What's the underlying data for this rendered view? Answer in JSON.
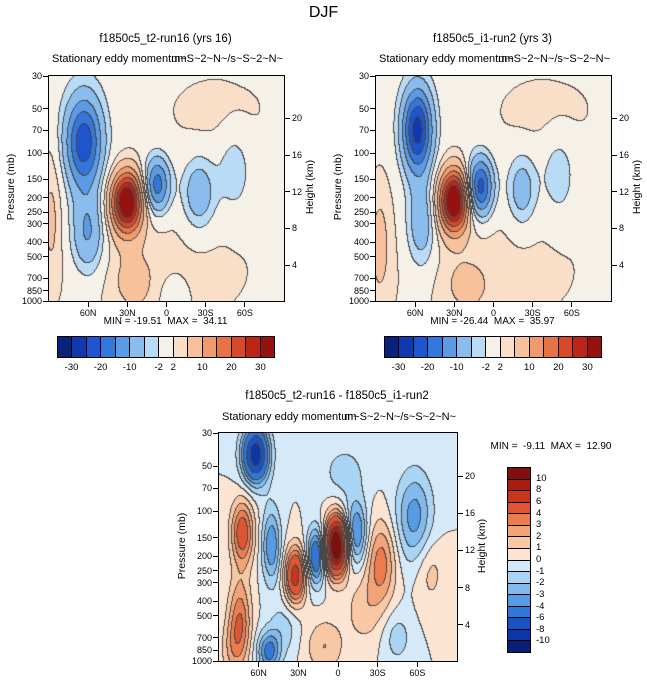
{
  "page_title": "DJF",
  "chart_data": {
    "type": "heatmap",
    "season": "DJF",
    "field": "Stationary eddy momentum",
    "units_markup": "m~S~2~N~/s~S~2~N~",
    "x_axis": {
      "range_lat": [
        90,
        -90
      ],
      "ticks": [
        {
          "lat": 60,
          "label": "60N"
        },
        {
          "lat": 30,
          "label": "30N"
        },
        {
          "lat": 0,
          "label": "0"
        },
        {
          "lat": -30,
          "label": "30S"
        },
        {
          "lat": -60,
          "label": "60S"
        }
      ]
    },
    "y_axis": {
      "label": "Pressure (mb)",
      "scale": "log",
      "ticks": [
        30,
        50,
        70,
        100,
        150,
        200,
        250,
        300,
        400,
        500,
        700,
        850,
        1000
      ]
    },
    "y2_axis": {
      "label": "Height (km)",
      "ticks": [
        20,
        16,
        12,
        8,
        4
      ]
    },
    "levels": [
      -30,
      -25,
      -20,
      -15,
      -10,
      -5,
      -2,
      2,
      5,
      10,
      15,
      20,
      25,
      30
    ],
    "level_label_values": [
      "-30",
      "-20",
      "-10",
      "-2",
      "2",
      "10",
      "20",
      "30"
    ],
    "level_label_indices": [
      0,
      2,
      4,
      6,
      7,
      9,
      11,
      13
    ],
    "palette": [
      "#08237e",
      "#1039b0",
      "#1c55cf",
      "#3377dd",
      "#5b9be6",
      "#8abced",
      "#badbf5",
      "#f5f0e8",
      "#fadfc8",
      "#f7c19b",
      "#f19b6c",
      "#e77244",
      "#d8492a",
      "#bd2617",
      "#951210"
    ],
    "diff_levels": [
      -10,
      -8,
      -6,
      -4,
      -3,
      -2,
      -1,
      0,
      1,
      2,
      3,
      4,
      6,
      8,
      10
    ],
    "diff_labels": [
      "10",
      "8",
      "6",
      "4",
      "3",
      "2",
      "1",
      "0",
      "-1",
      "-2",
      "-3",
      "-4",
      "-6",
      "-8",
      "-10"
    ],
    "diff_palette": [
      "#071f75",
      "#0d35a5",
      "#1a53c6",
      "#2f77d9",
      "#559ce5",
      "#81bbee",
      "#aad4f4",
      "#d5e9f9",
      "#fce4d2",
      "#f9c7a4",
      "#f4a377",
      "#ec7c4e",
      "#df5531",
      "#c9351f",
      "#a81c12",
      "#7f100d"
    ],
    "panels": [
      {
        "title": "f1850c5_t2-run16 (yrs 16)",
        "subtitle": "Stationary eddy momentum",
        "units": "m~S~2~N~/s~S~2~N~",
        "stats": "MIN = -19.51  MAX =  34.11",
        "min": -19.51,
        "max": 34.11,
        "features": [
          [
            3,
            0,
            600,
            70,
            1.0
          ],
          [
            3,
            -40,
            50,
            35,
            0.5
          ],
          [
            -24,
            63,
            85,
            10,
            0.5
          ],
          [
            -12,
            60,
            350,
            9,
            0.45
          ],
          [
            37,
            30,
            215,
            8.5,
            0.33
          ],
          [
            -19,
            7,
            165,
            7,
            0.3
          ],
          [
            -10,
            -25,
            190,
            9,
            0.4
          ],
          [
            -5,
            -52,
            130,
            9,
            0.5
          ],
          [
            5,
            88,
            250,
            6,
            0.8
          ],
          [
            4,
            25,
            750,
            12,
            0.35
          ],
          [
            -3,
            -5,
            930,
            8,
            0.25
          ]
        ]
      },
      {
        "title": "f1850c5_i1-run2 (yrs 3)",
        "subtitle": "Stationary eddy momentum",
        "units": "m~S~2~N~/s~S~2~N~",
        "stats": "MIN = -26.44  MAX =  35.97",
        "min": -26.44,
        "max": 35.97,
        "features": [
          [
            3,
            0,
            600,
            70,
            1.0
          ],
          [
            3,
            -40,
            50,
            35,
            0.5
          ],
          [
            -28,
            58,
            70,
            8,
            0.45
          ],
          [
            -10,
            55,
            300,
            8,
            0.5
          ],
          [
            38,
            30,
            210,
            8,
            0.33
          ],
          [
            -24,
            10,
            170,
            7,
            0.32
          ],
          [
            -9,
            -22,
            180,
            8,
            0.4
          ],
          [
            -5,
            -50,
            140,
            9,
            0.5
          ],
          [
            5,
            87,
            400,
            7,
            0.8
          ],
          [
            4,
            20,
            800,
            12,
            0.3
          ]
        ]
      },
      {
        "title": "f1850c5_t2-run16 - f1850c5_i1-run2",
        "subtitle": "Stationary eddy momentum",
        "units": "m~S~2~N~/s~S~2~N~",
        "stats": "MIN =  -9.11  MAX =  12.90",
        "min": -9.11,
        "max": 12.9,
        "features": [
          [
            -9.5,
            62,
            42,
            7,
            0.3
          ],
          [
            5,
            72,
            140,
            6,
            0.35
          ],
          [
            -4,
            50,
            170,
            5,
            0.4
          ],
          [
            7,
            32,
            270,
            5.5,
            0.3
          ],
          [
            -6,
            16,
            200,
            5,
            0.3
          ],
          [
            13.5,
            1,
            170,
            6,
            0.3
          ],
          [
            -4.5,
            -14,
            140,
            6,
            0.35
          ],
          [
            3.5,
            -33,
            220,
            8,
            0.45
          ],
          [
            -3.5,
            -58,
            110,
            10,
            0.5
          ],
          [
            -4.5,
            52,
            870,
            6,
            0.22
          ],
          [
            4,
            74,
            550,
            6,
            0.45
          ],
          [
            2,
            10,
            800,
            10,
            0.3
          ],
          [
            -1.5,
            40,
            600,
            8,
            0.3
          ],
          [
            1.5,
            -20,
            450,
            10,
            0.4
          ],
          [
            -1.5,
            -45,
            700,
            8,
            0.3
          ],
          [
            1.5,
            -70,
            250,
            8,
            0.4
          ],
          [
            -1.5,
            -5,
            55,
            12,
            0.3
          ],
          [
            1.5,
            80,
            850,
            6,
            0.3
          ]
        ]
      }
    ]
  }
}
